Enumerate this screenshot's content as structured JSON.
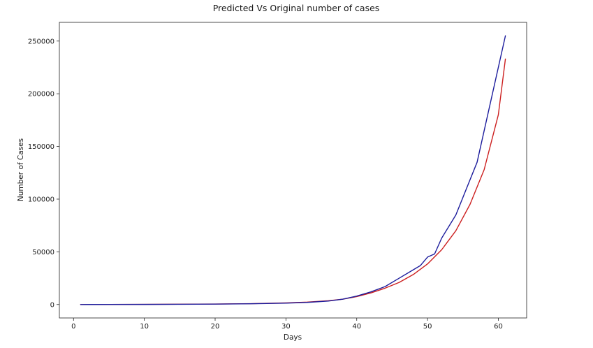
{
  "chart_data": {
    "type": "line",
    "title": "Predicted Vs Original number of cases",
    "xlabel": "Days",
    "ylabel": "Number of Cases",
    "xlim": [
      -2,
      64
    ],
    "ylim": [
      -12750,
      267750
    ],
    "xticks": [
      0,
      10,
      20,
      30,
      40,
      50,
      60
    ],
    "yticks": [
      0,
      50000,
      100000,
      150000,
      200000,
      250000
    ],
    "grid": false,
    "legend": "none",
    "series": [
      {
        "color": "#cc1f1f",
        "x": [
          1,
          5,
          10,
          15,
          20,
          25,
          30,
          33,
          36,
          38,
          40,
          42,
          44,
          46,
          48,
          50,
          52,
          54,
          56,
          58,
          60,
          61
        ],
        "y": [
          0,
          50,
          150,
          300,
          500,
          800,
          1500,
          2300,
          3600,
          5000,
          7500,
          11000,
          15500,
          21000,
          28500,
          38500,
          52000,
          70000,
          95000,
          128000,
          180000,
          233000
        ]
      },
      {
        "color": "#1c1c9c",
        "x": [
          1,
          5,
          10,
          15,
          20,
          25,
          30,
          33,
          36,
          38,
          40,
          42,
          44,
          46,
          48,
          49,
          50,
          51,
          52,
          54,
          57,
          61
        ],
        "y": [
          0,
          30,
          100,
          200,
          400,
          700,
          1300,
          2000,
          3300,
          5000,
          8000,
          12000,
          17000,
          25000,
          33000,
          37000,
          45000,
          48000,
          63000,
          85000,
          135000,
          255000
        ]
      }
    ]
  }
}
